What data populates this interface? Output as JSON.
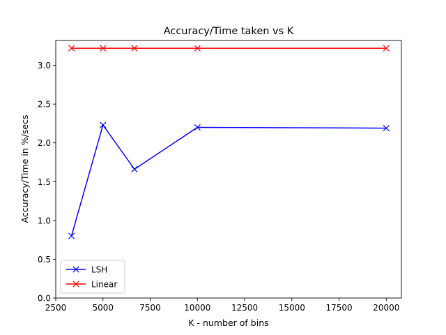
{
  "chart_data": {
    "type": "line",
    "title": "Accuracy/Time taken vs K",
    "xlabel": "K - number of bins",
    "ylabel": "Accuracy/Time in %/secs",
    "xlim": [
      2500,
      20800
    ],
    "ylim": [
      0,
      3.32
    ],
    "xticks": [
      2500,
      5000,
      7500,
      10000,
      12500,
      15000,
      17500,
      20000
    ],
    "xtick_labels": [
      "2500",
      "5000",
      "7500",
      "10000",
      "12500",
      "15000",
      "17500",
      "20000"
    ],
    "yticks": [
      0.0,
      0.5,
      1.0,
      1.5,
      2.0,
      2.5,
      3.0
    ],
    "ytick_labels": [
      "0.0",
      "0.5",
      "1.0",
      "1.5",
      "2.0",
      "2.5",
      "3.0"
    ],
    "grid": false,
    "legend_position": "lower-left",
    "marker": "x",
    "series": [
      {
        "name": "LSH",
        "color": "#0000ff",
        "x": [
          3333,
          5000,
          6667,
          10000,
          20000
        ],
        "y": [
          0.8,
          2.23,
          1.66,
          2.2,
          2.19
        ]
      },
      {
        "name": "Linear",
        "color": "#ff0000",
        "x": [
          3333,
          5000,
          6667,
          10000,
          20000
        ],
        "y": [
          3.22,
          3.22,
          3.22,
          3.22,
          3.22
        ]
      }
    ]
  }
}
